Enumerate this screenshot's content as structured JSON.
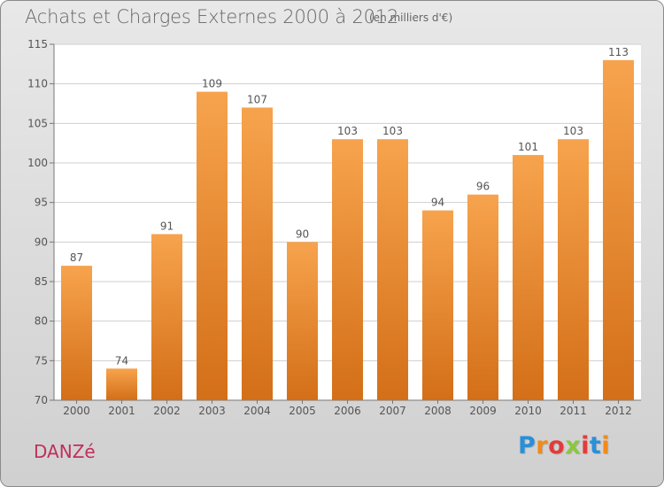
{
  "title": "Achats et Charges Externes 2000 à 2012",
  "subtitle": "(en milliers d'€)",
  "city": "DANZé",
  "brand": {
    "letters": [
      "P",
      "r",
      "o",
      "x",
      "i",
      "t",
      "i"
    ],
    "colors": [
      "#2a8fd8",
      "#f08a1c",
      "#e33b3b",
      "#8cc63f",
      "#e33b3b",
      "#2a8fd8",
      "#f08a1c"
    ]
  },
  "colors": {
    "bar_top": "#f7a34d",
    "bar_bottom": "#d36f18",
    "grid": "#cfcfcf",
    "plot_bg": "#ffffff"
  },
  "chart_data": {
    "type": "bar",
    "categories": [
      "2000",
      "2001",
      "2002",
      "2003",
      "2004",
      "2005",
      "2006",
      "2007",
      "2008",
      "2009",
      "2010",
      "2011",
      "2012"
    ],
    "values": [
      87,
      74,
      91,
      109,
      107,
      90,
      103,
      103,
      94,
      96,
      101,
      103,
      113
    ],
    "title": "Achats et Charges Externes 2000 à 2012",
    "xlabel": "",
    "ylabel": "",
    "ylim": [
      70,
      115
    ],
    "yticks": [
      70,
      75,
      80,
      85,
      90,
      95,
      100,
      105,
      110,
      115
    ],
    "grid": true
  }
}
